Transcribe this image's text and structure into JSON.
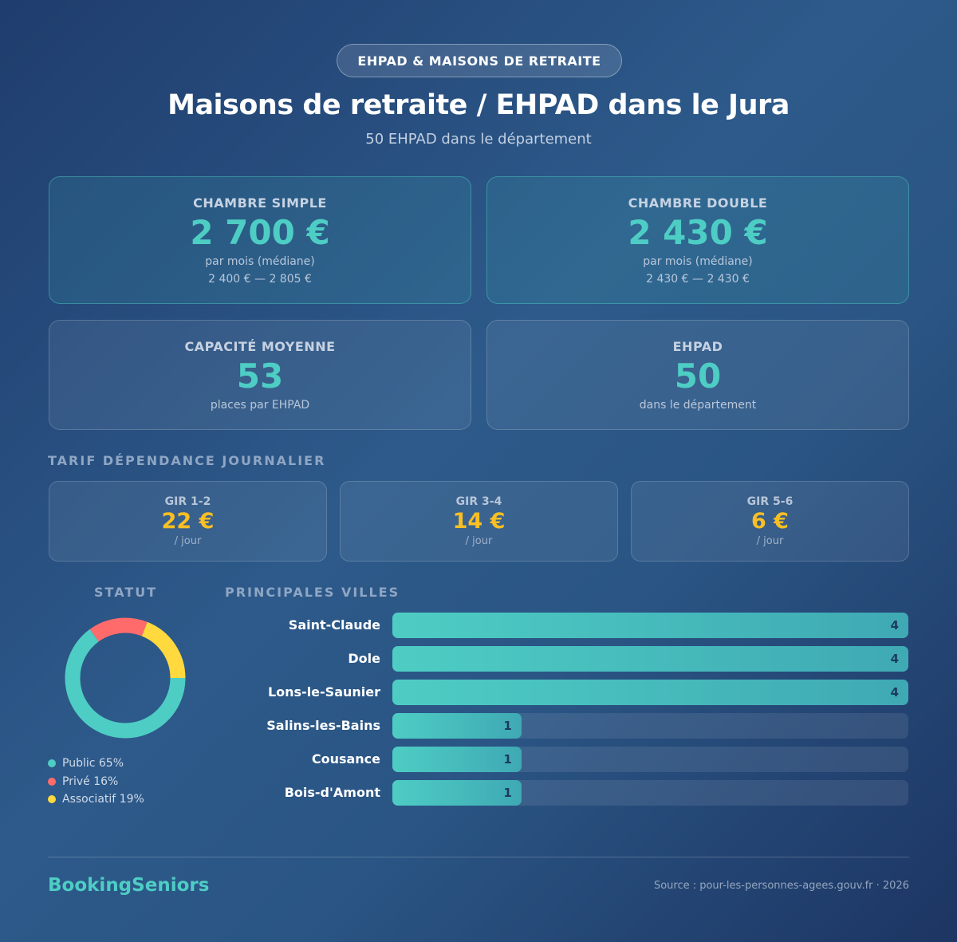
{
  "badge": "EHPAD & MAISONS DE RETRAITE",
  "title": "Maisons de retraite / EHPAD dans le Jura",
  "subtitle": "50 EHPAD dans le département",
  "cards": [
    {
      "label": "CHAMBRE SIMPLE",
      "value": "2 700 €",
      "note": "par mois (médiane)",
      "range": "2 400 € — 2 805 €"
    },
    {
      "label": "CHAMBRE DOUBLE",
      "value": "2 430 €",
      "note": "par mois (médiane)",
      "range": "2 430 € — 2 430 €"
    }
  ],
  "stats": [
    {
      "label": "CAPACITÉ MOYENNE",
      "value": "53",
      "note": "places par EHPAD"
    },
    {
      "label": "EHPAD",
      "value": "50",
      "note": "dans le département"
    }
  ],
  "tarif": {
    "title": "TARIF DÉPENDANCE JOURNALIER",
    "items": [
      {
        "label": "GIR 1-2",
        "value": "22 €",
        "unit": "/ jour"
      },
      {
        "label": "GIR 3-4",
        "value": "14 €",
        "unit": "/ jour"
      },
      {
        "label": "GIR 5-6",
        "value": "6 €",
        "unit": "/ jour"
      }
    ]
  },
  "chart_data": [
    {
      "type": "pie",
      "title": "STATUT",
      "categories": [
        "Public",
        "Privé",
        "Associatif"
      ],
      "values": [
        65,
        16,
        19
      ],
      "value_labels": [
        "65%",
        "16%",
        "19%"
      ],
      "colors": [
        "#4ecdc4",
        "#ff6b6b",
        "#ffd93d"
      ]
    },
    {
      "type": "bar",
      "title": "PRINCIPALES VILLES",
      "categories": [
        "Saint-Claude",
        "Dole",
        "Lons-le-Saunier",
        "Salins-les-Bains",
        "Cousance",
        "Bois-d'Amont"
      ],
      "values": [
        4,
        4,
        4,
        1,
        1,
        1
      ],
      "color": "#4ecdc4"
    }
  ],
  "footer": {
    "brand": "BookingSeniors",
    "source": "Source : pour-les-personnes-agees.gouv.fr · 2026"
  }
}
